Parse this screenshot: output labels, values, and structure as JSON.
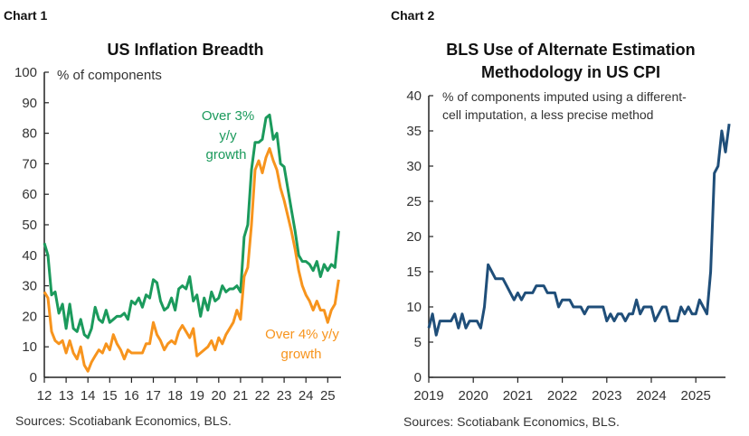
{
  "colors": {
    "green": "#1b9a5c",
    "orange": "#f7941d",
    "navy": "#1f4e79",
    "axis": "#222222"
  },
  "chart_data": [
    {
      "type": "line",
      "header": "Chart 1",
      "title": "US Inflation Breadth",
      "ylabel": "% of components",
      "ylim": [
        0,
        100
      ],
      "yticks": [
        "0",
        "10",
        "20",
        "30",
        "40",
        "50",
        "60",
        "70",
        "80",
        "90",
        "100"
      ],
      "xticks": [
        "12",
        "13",
        "14",
        "15",
        "16",
        "17",
        "18",
        "19",
        "20",
        "21",
        "22",
        "23",
        "24",
        "25"
      ],
      "grid": false,
      "source": "Sources: Scotiabank Economics, BLS.",
      "x": [
        "2012-01",
        "2012-03",
        "2012-05",
        "2012-07",
        "2012-09",
        "2012-11",
        "2013-01",
        "2013-03",
        "2013-05",
        "2013-07",
        "2013-09",
        "2013-11",
        "2014-01",
        "2014-03",
        "2014-05",
        "2014-07",
        "2014-09",
        "2014-11",
        "2015-01",
        "2015-03",
        "2015-05",
        "2015-07",
        "2015-09",
        "2015-11",
        "2016-01",
        "2016-03",
        "2016-05",
        "2016-07",
        "2016-09",
        "2016-11",
        "2017-01",
        "2017-03",
        "2017-05",
        "2017-07",
        "2017-09",
        "2017-11",
        "2018-01",
        "2018-03",
        "2018-05",
        "2018-07",
        "2018-09",
        "2018-11",
        "2019-01",
        "2019-03",
        "2019-05",
        "2019-07",
        "2019-09",
        "2019-11",
        "2020-01",
        "2020-03",
        "2020-05",
        "2020-07",
        "2020-09",
        "2020-11",
        "2021-01",
        "2021-03",
        "2021-05",
        "2021-07",
        "2021-09",
        "2021-11",
        "2022-01",
        "2022-03",
        "2022-05",
        "2022-07",
        "2022-09",
        "2022-11",
        "2023-01",
        "2023-03",
        "2023-05",
        "2023-07",
        "2023-09",
        "2023-11",
        "2024-01",
        "2024-03",
        "2024-05",
        "2024-07",
        "2024-09",
        "2024-11",
        "2025-01",
        "2025-03",
        "2025-05",
        "2025-07"
      ],
      "series": [
        {
          "name": "Over 3% y/y growth",
          "label_lines": [
            "Over 3%",
            "y/y",
            "growth"
          ],
          "color": "#1b9a5c",
          "values": [
            44,
            40,
            27,
            28,
            21,
            24,
            16,
            24,
            16,
            15,
            19,
            14,
            13,
            16,
            23,
            19,
            18,
            22,
            18,
            19,
            20,
            20,
            21,
            19,
            25,
            24,
            26,
            23,
            27,
            26,
            32,
            31,
            25,
            22,
            23,
            26,
            22,
            29,
            30,
            29,
            33,
            25,
            27,
            20,
            26,
            22,
            28,
            25,
            26,
            30,
            28,
            29,
            29,
            30,
            28,
            46,
            50,
            68,
            77,
            77,
            78,
            85,
            86,
            78,
            80,
            70,
            69,
            62,
            55,
            48,
            40,
            38,
            38,
            37,
            35,
            38,
            33,
            37,
            35,
            37,
            36,
            48
          ]
        },
        {
          "name": "Over 4% y/y growth",
          "label_lines": [
            "Over 4% y/y",
            "growth"
          ],
          "color": "#f7941d",
          "values": [
            28,
            26,
            15,
            12,
            11,
            12,
            8,
            12,
            8,
            6,
            10,
            4,
            2,
            5,
            7,
            9,
            8,
            11,
            9,
            14,
            11,
            9,
            6,
            9,
            8,
            8,
            8,
            8,
            11,
            11,
            18,
            14,
            12,
            9,
            11,
            12,
            11,
            15,
            17,
            15,
            13,
            16,
            7,
            8,
            9,
            10,
            12,
            9,
            13,
            11,
            14,
            16,
            18,
            22,
            19,
            33,
            36,
            50,
            68,
            71,
            67,
            72,
            75,
            71,
            68,
            62,
            58,
            53,
            48,
            42,
            35,
            30,
            27,
            25,
            22,
            25,
            22,
            22,
            18,
            22,
            24,
            32
          ]
        }
      ]
    },
    {
      "type": "line",
      "header": "Chart 2",
      "title": "BLS Use of Alternate Estimation Methodology in US CPI",
      "title_lines": [
        "BLS Use of Alternate Estimation",
        "Methodology in US CPI"
      ],
      "ylabel": "% of components imputed using a different-cell imputation, a less precise method",
      "ylabel_lines": [
        "% of components imputed using a different-",
        "cell imputation, a less precise method"
      ],
      "ylim": [
        0,
        40
      ],
      "yticks": [
        "0",
        "5",
        "10",
        "15",
        "20",
        "25",
        "30",
        "35",
        "40"
      ],
      "xticks": [
        "2019",
        "2020",
        "2021",
        "2022",
        "2023",
        "2024",
        "2025"
      ],
      "grid": false,
      "source": "Sources: Scotiabank Economics, BLS.",
      "x_start": "2019-01",
      "series": [
        {
          "color": "#1f4e79",
          "values": [
            7,
            9,
            6,
            8,
            8,
            8,
            8,
            9,
            7,
            9,
            7,
            8,
            8,
            8,
            7,
            10,
            16,
            15,
            14,
            14,
            14,
            13,
            12,
            11,
            12,
            11,
            12,
            12,
            12,
            13,
            13,
            13,
            12,
            12,
            12,
            10,
            11,
            11,
            11,
            10,
            10,
            10,
            9,
            10,
            10,
            10,
            10,
            10,
            8,
            9,
            8,
            9,
            9,
            8,
            9,
            9,
            11,
            9,
            10,
            10,
            10,
            8,
            9,
            10,
            10,
            8,
            8,
            8,
            10,
            9,
            10,
            9,
            9,
            11,
            10,
            9,
            15,
            29,
            30,
            35,
            32,
            36
          ]
        }
      ]
    }
  ]
}
